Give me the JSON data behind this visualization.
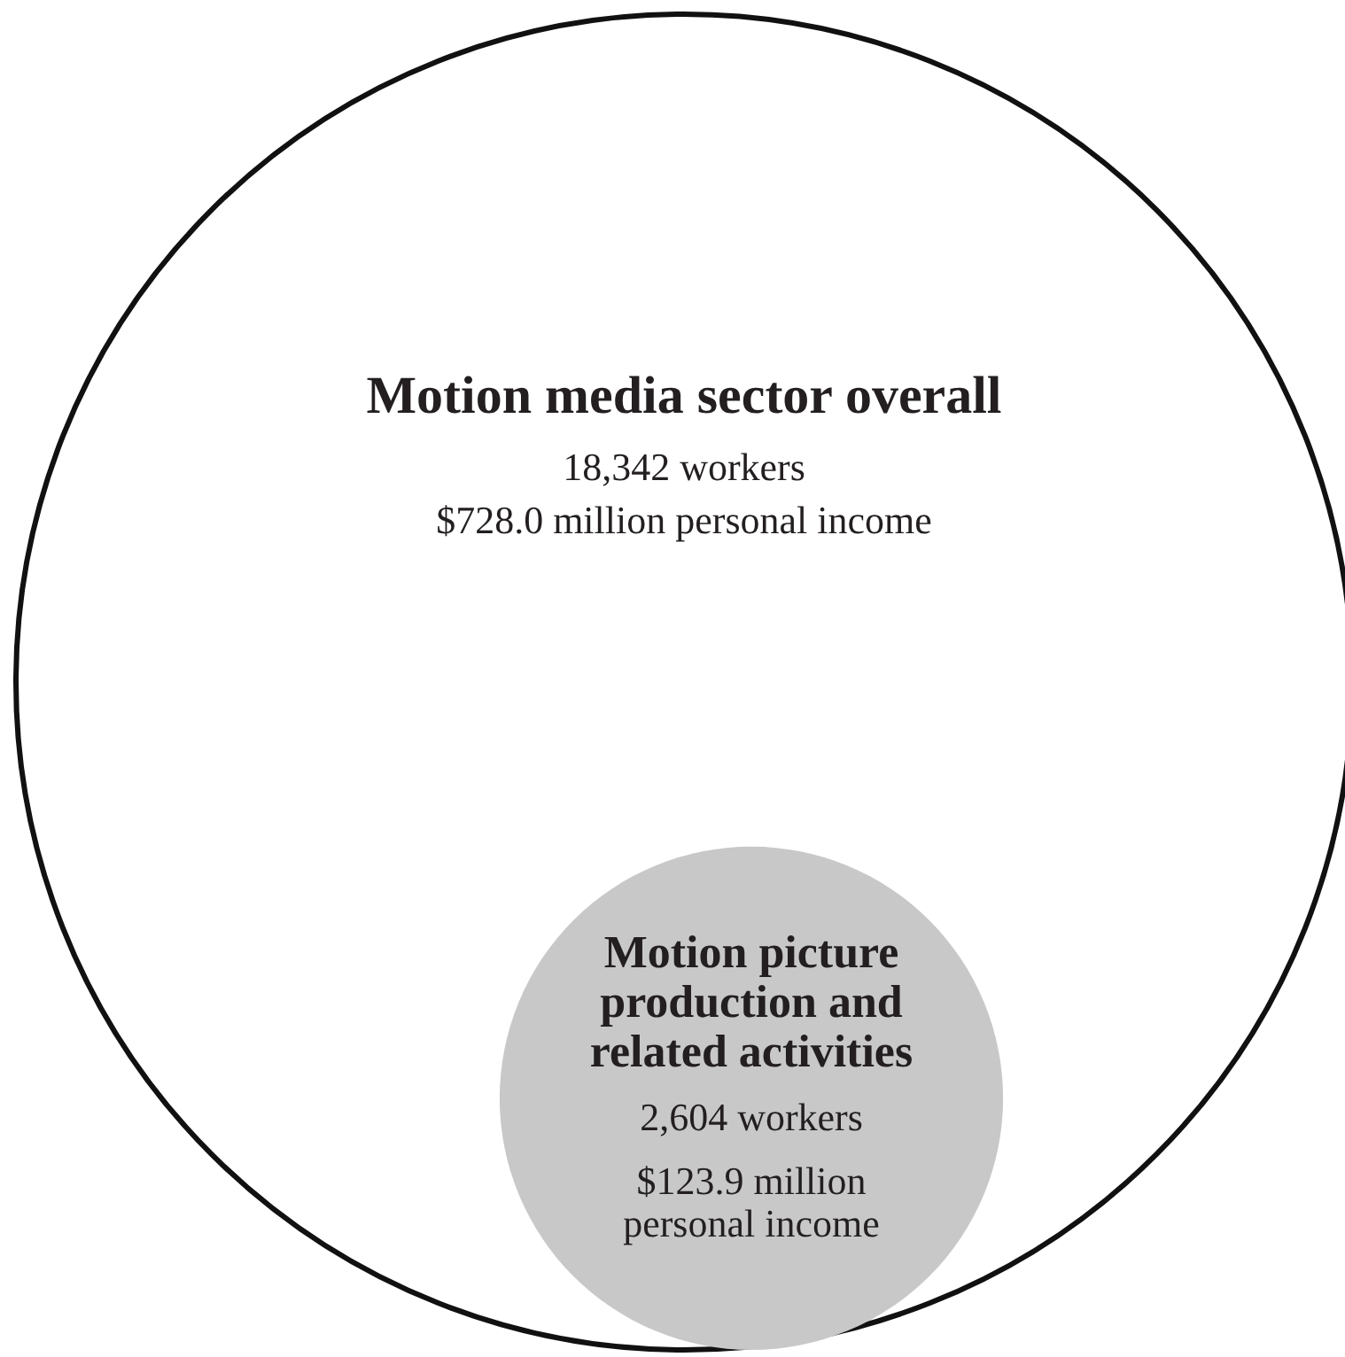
{
  "chart_data": {
    "type": "other",
    "categories": [
      "Motion media sector overall",
      "Motion picture production and related activities"
    ],
    "values": [
      18342,
      2604
    ],
    "value_labels": [
      "18,342 workers",
      "2,604 workers"
    ],
    "colors": [
      "#ffffff",
      "#c8c8c8"
    ],
    "annotations": [
      "$728.0 million personal income",
      "$123.9 million personal income"
    ]
  }
}
